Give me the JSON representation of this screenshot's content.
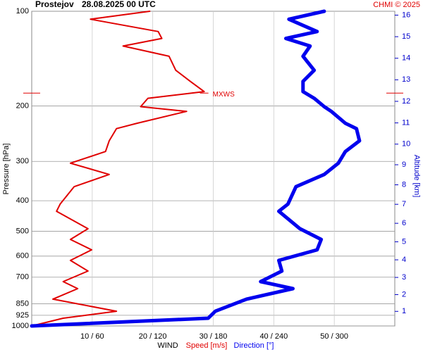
{
  "chart_data": {
    "type": "profile",
    "title": "Prostejov",
    "subtitle": "28.08.2025 00 UTC",
    "credit": "CHMI © 2025",
    "ylabel": "Pressure [hPa]",
    "y2label": "Altitude [km]",
    "xlabel": "WIND",
    "y": [
      100,
      106,
      116,
      122,
      129,
      139,
      154,
      167,
      180,
      189,
      201,
      208,
      227,
      236,
      258,
      279,
      304,
      330,
      361,
      410,
      432,
      491,
      531,
      573,
      619,
      669,
      723,
      761,
      822,
      898,
      945,
      1000
    ],
    "series": [
      {
        "name": "Speed [m/s]",
        "color": "#e00000",
        "values": [
          19.5,
          9.7,
          20.9,
          21.5,
          15.1,
          22.7,
          23.8,
          26.2,
          28.5,
          19.2,
          18,
          25.6,
          17.4,
          14,
          12.8,
          12.2,
          6.4,
          12.8,
          7,
          4.7,
          4.1,
          9.3,
          6.4,
          9.9,
          6.4,
          9.3,
          5.2,
          7.6,
          3.5,
          14,
          5.2,
          0
        ]
      },
      {
        "name": "Direction [°]",
        "color": "#0000ee",
        "axis": "x2",
        "values": [
          290,
          255,
          283,
          252,
          276,
          269,
          280,
          269,
          269,
          280,
          290,
          297,
          311,
          322,
          325,
          311,
          304,
          290,
          262,
          254,
          245,
          266,
          287,
          283,
          245,
          248,
          227,
          259,
          213,
          182,
          175,
          0
        ]
      }
    ],
    "xlim": [
      0,
      60
    ],
    "x2lim": [
      0,
      360
    ],
    "xticks": [
      {
        "value": 10,
        "label": "10 / 60"
      },
      {
        "value": 20,
        "label": "20 / 120"
      },
      {
        "value": 30,
        "label": "30 / 180"
      },
      {
        "value": 40,
        "label": "40 / 240"
      },
      {
        "value": 50,
        "label": "50 / 300"
      }
    ],
    "ylim": [
      100,
      1000
    ],
    "ylog": true,
    "yinverted": true,
    "yticks": [
      100,
      200,
      300,
      400,
      500,
      600,
      700,
      850,
      925,
      1000
    ],
    "y2ticks": [
      1,
      2,
      3,
      4,
      5,
      6,
      7,
      8,
      9,
      10,
      11,
      12,
      13,
      14,
      15,
      16
    ],
    "y2color": "#0000cc",
    "grid": true,
    "annotation": {
      "label": "MXWS",
      "pressure": 182,
      "speed": 28.5,
      "color": "#e00000"
    }
  }
}
